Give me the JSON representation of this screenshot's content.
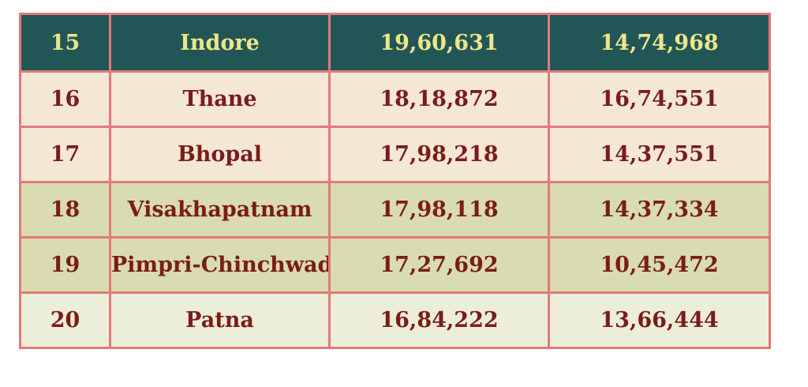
{
  "table": {
    "rows": [
      {
        "rank": "15",
        "city": "Indore",
        "pop1": "19,60,631",
        "pop2": "14,74,968",
        "style": "header"
      },
      {
        "rank": "16",
        "city": "Thane",
        "pop1": "18,18,872",
        "pop2": "16,74,551",
        "style": "cream"
      },
      {
        "rank": "17",
        "city": "Bhopal",
        "pop1": "17,98,218",
        "pop2": "14,37,551",
        "style": "cream"
      },
      {
        "rank": "18",
        "city": "Visakhapatnam",
        "pop1": "17,98,118",
        "pop2": "14,37,334",
        "style": "green"
      },
      {
        "rank": "19",
        "city": "Pimpri-Chinchwad",
        "pop1": "17,27,692",
        "pop2": "10,45,472",
        "style": "green"
      },
      {
        "rank": "20",
        "city": "Patna",
        "pop1": "16,84,222",
        "pop2": "13,66,444",
        "style": "pale"
      }
    ]
  },
  "colors": {
    "header_bg": "#225656",
    "header_text": "#eee58a",
    "body_text": "#7a1c1a",
    "border": "#e2797b",
    "cream_bg": "#f4e8d4",
    "green_bg": "#d9dcb0",
    "pale_bg": "#edeeda"
  }
}
